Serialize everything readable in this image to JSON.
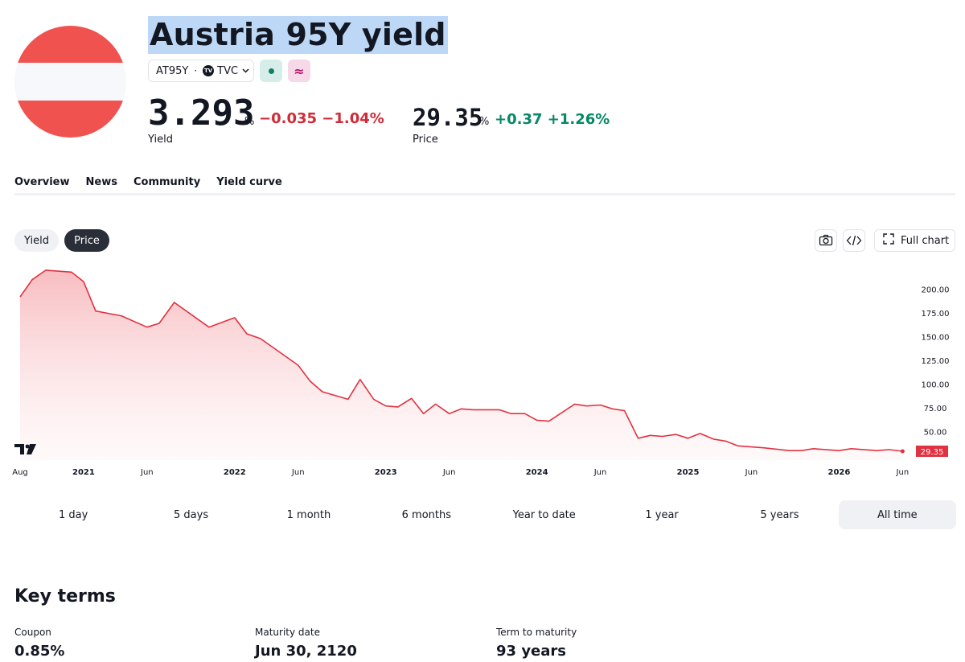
{
  "header": {
    "title": "Austria 95Y yield",
    "symbol": "AT95Y",
    "exchange": "TVC",
    "exchange_badge": "TV",
    "separator": "·",
    "delay_icon": "≈",
    "flag_colors": [
      "#f0524f",
      "#f7f8fc",
      "#f0524f"
    ]
  },
  "quote": {
    "yield_value": "3.293",
    "yield_unit": "%",
    "yield_change": "−0.035 −1.04%",
    "yield_label": "Yield",
    "price_value": "29.35",
    "price_unit": "%",
    "price_change": "+0.37 +1.26%",
    "price_label": "Price",
    "negative_color": "#d02b38",
    "positive_color": "#078866"
  },
  "tabs": [
    {
      "label": "Overview",
      "active": true
    },
    {
      "label": "News",
      "active": false
    },
    {
      "label": "Community",
      "active": false
    },
    {
      "label": "Yield curve",
      "active": false
    }
  ],
  "chart_toolbar": {
    "yield_toggle": "Yield",
    "price_toggle": "Price",
    "active_toggle": "Price",
    "camera_icon": "camera-icon",
    "embed_icon": "code-icon",
    "full_chart": "Full chart"
  },
  "chart_data": {
    "type": "area",
    "title": "",
    "series": [
      {
        "values": [
          [
            2020.58,
            192
          ],
          [
            2020.66,
            210
          ],
          [
            2020.75,
            220
          ],
          [
            2020.92,
            218
          ],
          [
            2021.0,
            208
          ],
          [
            2021.08,
            177
          ],
          [
            2021.25,
            172
          ],
          [
            2021.42,
            160
          ],
          [
            2021.5,
            164
          ],
          [
            2021.6,
            186
          ],
          [
            2021.83,
            160
          ],
          [
            2022.0,
            170
          ],
          [
            2022.08,
            153
          ],
          [
            2022.17,
            148
          ],
          [
            2022.42,
            120
          ],
          [
            2022.5,
            103
          ],
          [
            2022.58,
            92
          ],
          [
            2022.75,
            84
          ],
          [
            2022.83,
            105
          ],
          [
            2022.92,
            84
          ],
          [
            2023.0,
            77
          ],
          [
            2023.08,
            76
          ],
          [
            2023.17,
            85
          ],
          [
            2023.25,
            69
          ],
          [
            2023.33,
            79
          ],
          [
            2023.42,
            69
          ],
          [
            2023.5,
            74
          ],
          [
            2023.58,
            73
          ],
          [
            2023.75,
            73
          ],
          [
            2023.83,
            69
          ],
          [
            2023.92,
            69
          ],
          [
            2024.0,
            62
          ],
          [
            2024.08,
            61
          ],
          [
            2024.25,
            79
          ],
          [
            2024.33,
            77
          ],
          [
            2024.42,
            78
          ],
          [
            2024.5,
            74
          ],
          [
            2024.58,
            72
          ],
          [
            2024.67,
            43
          ],
          [
            2024.75,
            46
          ],
          [
            2024.83,
            45
          ],
          [
            2024.92,
            47
          ],
          [
            2025.0,
            43
          ],
          [
            2025.08,
            48
          ],
          [
            2025.17,
            42
          ],
          [
            2025.25,
            40
          ],
          [
            2025.33,
            35
          ],
          [
            2025.5,
            33
          ],
          [
            2025.67,
            30
          ],
          [
            2025.75,
            30
          ],
          [
            2025.83,
            32
          ],
          [
            2026.0,
            30
          ],
          [
            2026.08,
            32
          ],
          [
            2026.25,
            30
          ],
          [
            2026.33,
            31
          ],
          [
            2026.42,
            29.35
          ]
        ],
        "color": "#e03240"
      }
    ],
    "x_ticks": [
      "Aug",
      "2021",
      "Jun",
      "2022",
      "Jun",
      "2023",
      "Jun",
      "2024",
      "Jun",
      "2025",
      "Jun",
      "2026",
      "Jun"
    ],
    "x_tick_years": [
      2020.58,
      2021.0,
      2021.42,
      2022.0,
      2022.42,
      2023.0,
      2023.42,
      2024.0,
      2024.42,
      2025.0,
      2025.42,
      2026.0,
      2026.42
    ],
    "y_ticks": [
      "200.00",
      "175.00",
      "150.00",
      "125.00",
      "100.00",
      "75.00",
      "50.00"
    ],
    "y_tick_values": [
      200,
      175,
      150,
      125,
      100,
      75,
      50
    ],
    "ylim": [
      20,
      225
    ],
    "xlim": [
      2020.58,
      2026.45
    ],
    "last_value_label": "29.35",
    "grid": false,
    "watermark": "TradingView"
  },
  "ranges": [
    {
      "label": "1 day",
      "active": false
    },
    {
      "label": "5 days",
      "active": false
    },
    {
      "label": "1 month",
      "active": false
    },
    {
      "label": "6 months",
      "active": false
    },
    {
      "label": "Year to date",
      "active": false
    },
    {
      "label": "1 year",
      "active": false
    },
    {
      "label": "5 years",
      "active": false
    },
    {
      "label": "All time",
      "active": true
    }
  ],
  "key_terms": {
    "title": "Key terms",
    "items": [
      {
        "label": "Coupon",
        "value": "0.85%"
      },
      {
        "label": "Maturity date",
        "value": "Jun 30, 2120"
      },
      {
        "label": "Term to maturity",
        "value": "93 years"
      }
    ]
  }
}
